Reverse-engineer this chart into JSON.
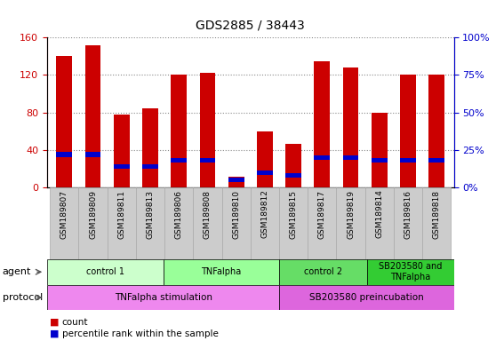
{
  "title": "GDS2885 / 38443",
  "samples": [
    "GSM189807",
    "GSM189809",
    "GSM189811",
    "GSM189813",
    "GSM189806",
    "GSM189808",
    "GSM189810",
    "GSM189812",
    "GSM189815",
    "GSM189817",
    "GSM189819",
    "GSM189814",
    "GSM189816",
    "GSM189818"
  ],
  "count_values": [
    140,
    152,
    78,
    84,
    120,
    122,
    12,
    60,
    47,
    135,
    128,
    80,
    120,
    120
  ],
  "percentile_values": [
    22,
    22,
    14,
    14,
    18,
    18,
    5,
    10,
    8,
    20,
    20,
    18,
    18,
    18
  ],
  "ylim_left": [
    0,
    160
  ],
  "ylim_right": [
    0,
    100
  ],
  "left_ticks": [
    0,
    40,
    80,
    120,
    160
  ],
  "right_ticks": [
    0,
    25,
    50,
    75,
    100
  ],
  "right_tick_labels": [
    "0%",
    "25%",
    "50%",
    "75%",
    "100%"
  ],
  "bar_color": "#cc0000",
  "percentile_color": "#0000cc",
  "agent_groups": [
    {
      "label": "control 1",
      "start": 0,
      "end": 4,
      "color": "#ccffcc"
    },
    {
      "label": "TNFalpha",
      "start": 4,
      "end": 8,
      "color": "#99ff99"
    },
    {
      "label": "control 2",
      "start": 8,
      "end": 11,
      "color": "#66dd66"
    },
    {
      "label": "SB203580 and\nTNFalpha",
      "start": 11,
      "end": 14,
      "color": "#33cc33"
    }
  ],
  "protocol_groups": [
    {
      "label": "TNFalpha stimulation",
      "start": 0,
      "end": 8,
      "color": "#ee88ee"
    },
    {
      "label": "SB203580 preincubation",
      "start": 8,
      "end": 14,
      "color": "#dd66dd"
    }
  ],
  "label_bg_color": "#cccccc",
  "background_color": "#ffffff"
}
